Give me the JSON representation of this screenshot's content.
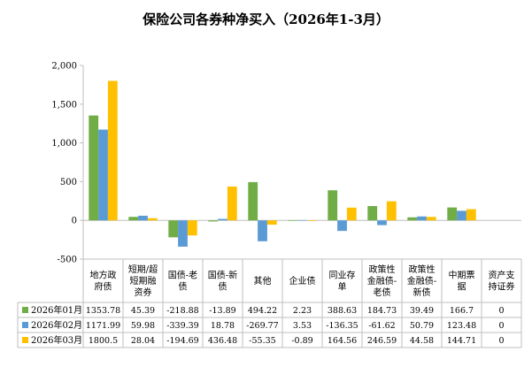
{
  "chart_data": {
    "type": "bar",
    "title": "保险公司各券种净买入（2026年1-3月）",
    "categories": [
      [
        "地方政",
        "府债"
      ],
      [
        "短期/超",
        "短期融",
        "资券"
      ],
      [
        "国债-老",
        "债"
      ],
      [
        "国债-新",
        "债"
      ],
      [
        "其他"
      ],
      [
        "企业债"
      ],
      [
        "同业存",
        "单"
      ],
      [
        "政策性",
        "金融债-",
        "老债"
      ],
      [
        "政策性",
        "金融债-",
        "新债"
      ],
      [
        "中期票",
        "据"
      ],
      [
        "资产支",
        "持证券"
      ]
    ],
    "series": [
      {
        "name": "2026年01月",
        "color": "#70ad47",
        "values": [
          1353.78,
          45.39,
          -218.88,
          -13.89,
          494.22,
          2.23,
          388.63,
          184.73,
          39.49,
          166.7,
          0
        ],
        "labels": [
          "1353.78",
          "45.39",
          "-218.88",
          "-13.89",
          "494.22",
          "2.23",
          "388.63",
          "184.73",
          "39.49",
          "166.7",
          "0"
        ]
      },
      {
        "name": "2026年02月",
        "color": "#5b9bd5",
        "values": [
          1171.99,
          59.98,
          -339.39,
          18.78,
          -269.77,
          3.53,
          -136.35,
          -61.62,
          50.79,
          123.48,
          0
        ],
        "labels": [
          "1171.99",
          "59.98",
          "-339.39",
          "18.78",
          "-269.77",
          "3.53",
          "-136.35",
          "-61.62",
          "50.79",
          "123.48",
          "0"
        ]
      },
      {
        "name": "2026年03月",
        "color": "#ffc000",
        "values": [
          1800.5,
          28.04,
          -194.69,
          436.48,
          -55.35,
          -0.89,
          164.56,
          246.59,
          44.58,
          144.71,
          0
        ],
        "labels": [
          "1800.5",
          "28.04",
          "-194.69",
          "436.48",
          "-55.35",
          "-0.89",
          "164.56",
          "246.59",
          "44.58",
          "144.71",
          "0"
        ]
      }
    ],
    "ylim": [
      -500,
      2000
    ],
    "yticks": [
      -500,
      0,
      500,
      1000,
      1500,
      2000
    ],
    "ytick_labels": [
      "-500",
      "0",
      "500",
      "1,000",
      "1,500",
      "2,000"
    ],
    "grid": false,
    "legend": "data-table-left"
  }
}
